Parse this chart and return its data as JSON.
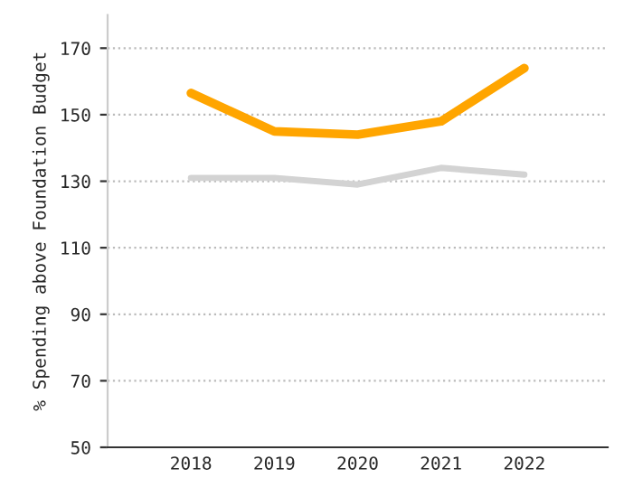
{
  "chart_data": {
    "type": "line",
    "ylabel": "% Spending above Foundation Budget",
    "categories": [
      "2018",
      "2019",
      "2020",
      "2021",
      "2022"
    ],
    "series": [
      {
        "color": "#ffa500",
        "values": [
          156.5,
          145,
          144,
          148,
          164
        ]
      },
      {
        "color": "#d3d3d3",
        "values": [
          131,
          131,
          129,
          134,
          132
        ]
      }
    ],
    "ylim": [
      50,
      180
    ],
    "yticks": [
      50,
      70,
      90,
      110,
      130,
      150,
      170
    ],
    "grid": "y"
  }
}
